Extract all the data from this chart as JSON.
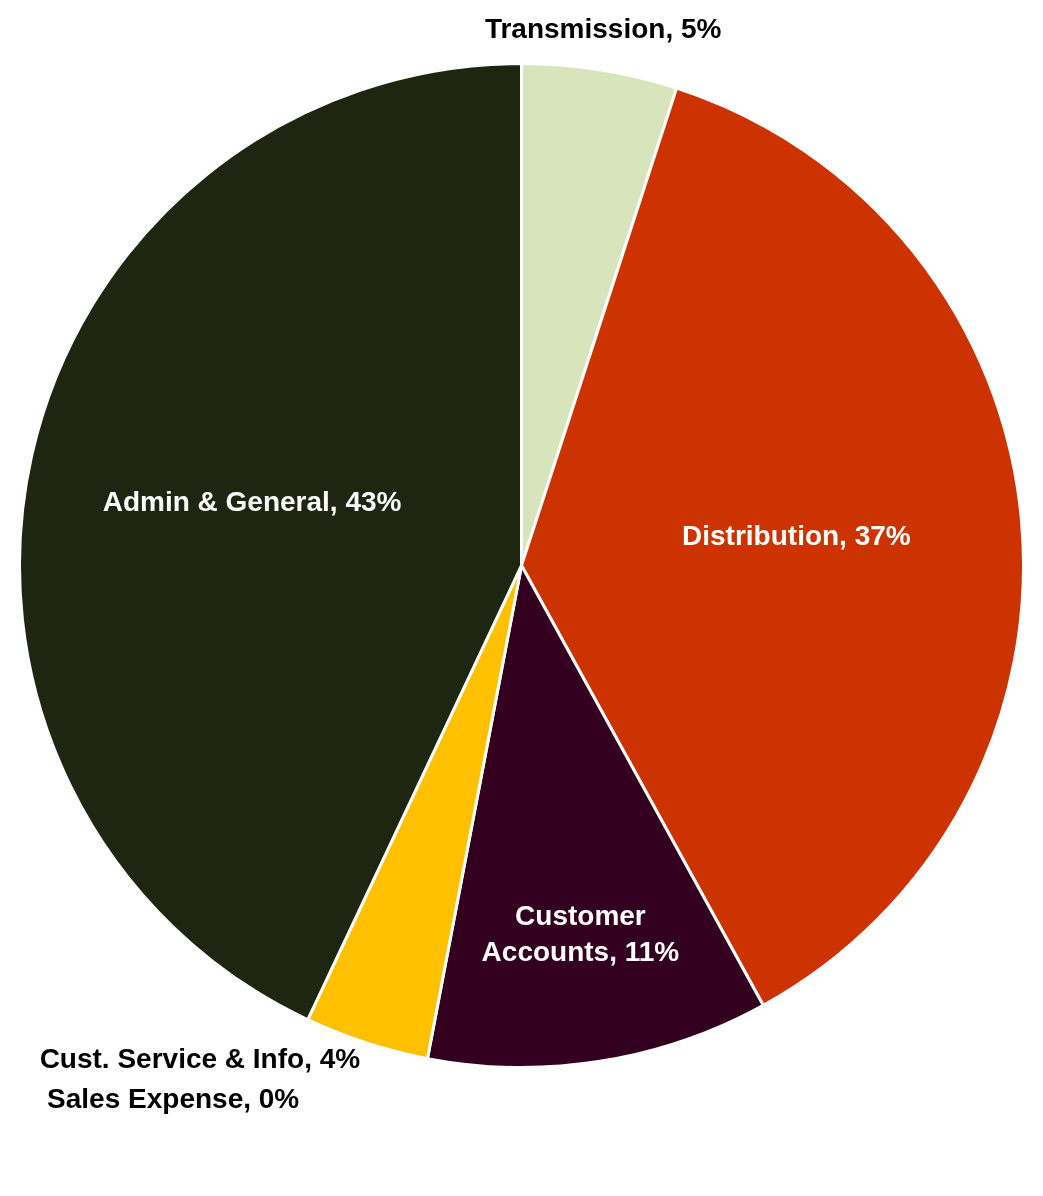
{
  "chart_data": {
    "type": "pie",
    "categories": [
      "Transmission",
      "Distribution",
      "Customer Accounts",
      "Cust. Service & Info",
      "Sales Expense",
      "Admin & General"
    ],
    "values": [
      5,
      37,
      11,
      4,
      0,
      43
    ],
    "value_labels": [
      ", 5%",
      ", 37%",
      ", 11%",
      ", 4%",
      ", 0%",
      ", 43%"
    ],
    "colors": [
      "#d8e4bc",
      "#cc3300",
      "#330020",
      "#ffc000",
      "#7f7f7f",
      "#1e2611"
    ],
    "legend": false
  }
}
